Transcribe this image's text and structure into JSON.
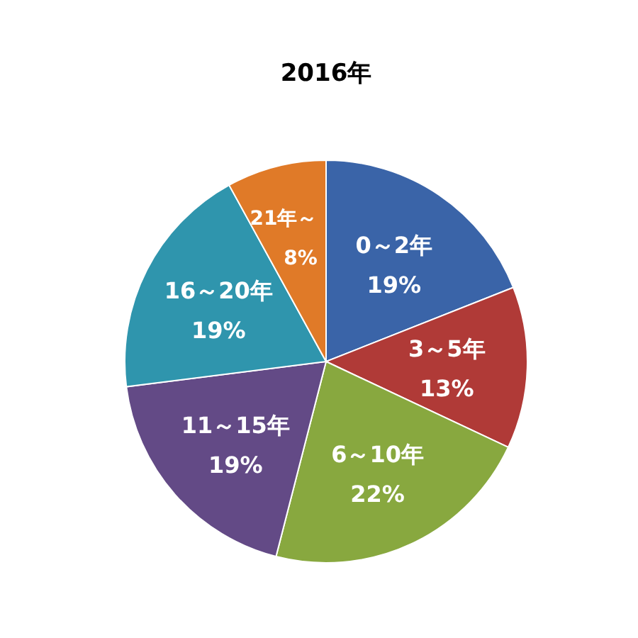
{
  "chart_data": {
    "type": "pie",
    "title": "2016年",
    "categories": [
      "0～2年",
      "3～5年",
      "6～10年",
      "11～15年",
      "16～20年",
      "21年～"
    ],
    "values": [
      19,
      13,
      22,
      19,
      19,
      8
    ],
    "value_labels": [
      "19%",
      "13%",
      "22%",
      "19%",
      "19%",
      "8%"
    ],
    "colors": [
      "#3a64a8",
      "#b03a37",
      "#88a83f",
      "#634a86",
      "#2f95ad",
      "#e07a28"
    ],
    "legend": false
  }
}
